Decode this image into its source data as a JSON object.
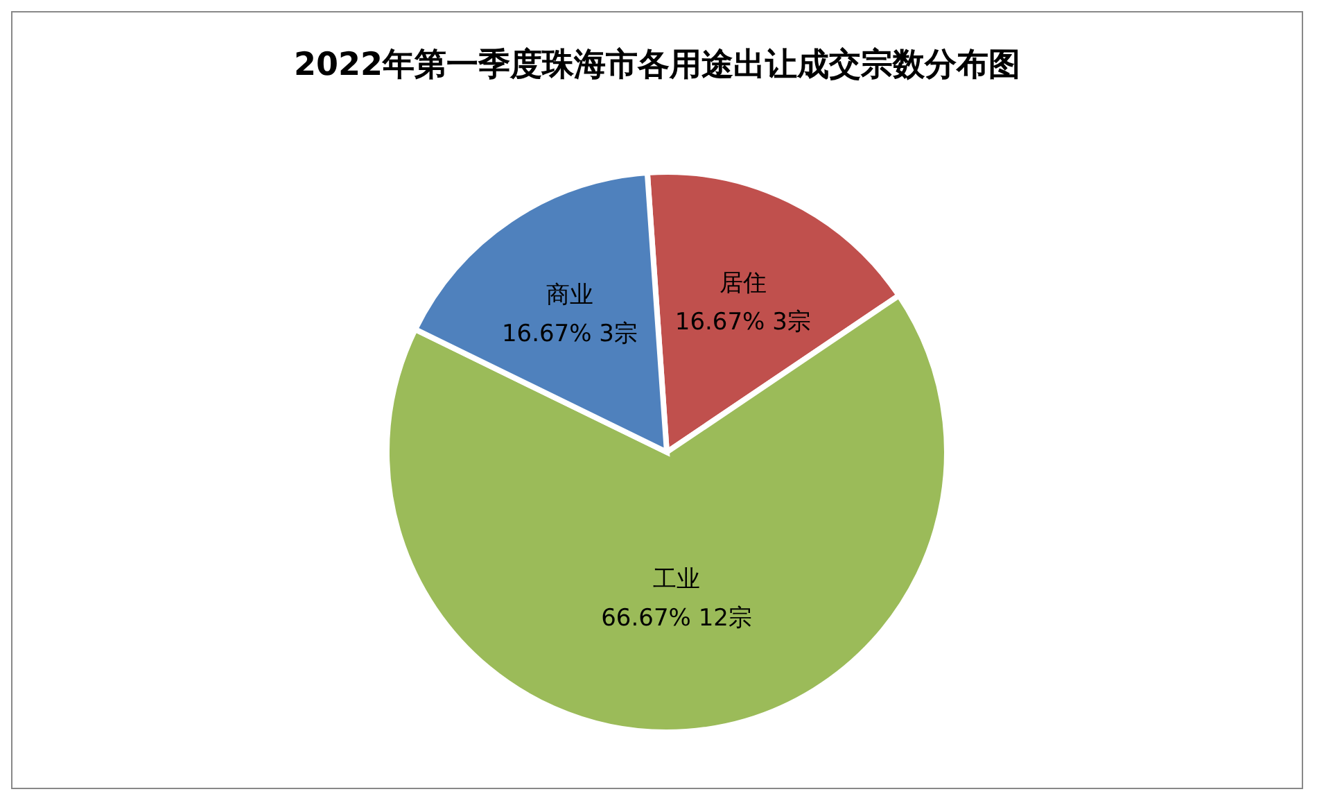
{
  "chart_data": {
    "type": "pie",
    "title": "2022年第一季度珠海市各用途出让成交宗数分布图",
    "categories": [
      "居住",
      "工业",
      "商业"
    ],
    "values": [
      3,
      12,
      3
    ],
    "colors": [
      "#c0504d",
      "#9bbb59",
      "#4f81bd"
    ],
    "value_labels": [
      "16.67% 3宗",
      "66.67% 12宗",
      "16.67% 3宗"
    ]
  }
}
